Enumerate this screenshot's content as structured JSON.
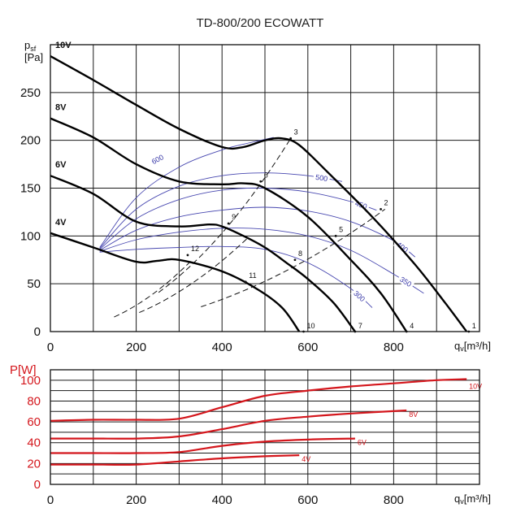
{
  "title": "TD-800/200 ECOWATT",
  "chart_data": [
    {
      "type": "line",
      "ylabel_main": "p",
      "ylabel_sub": "sf",
      "ylabel_unit": "[Pa]",
      "xlabel_main": "q",
      "xlabel_sub": "v",
      "xlabel_unit": "[m³/h]",
      "xlim": [
        0,
        1000
      ],
      "ylim": [
        0,
        300
      ],
      "xticks": [
        "0",
        "200",
        "400",
        "600",
        "800"
      ],
      "yticks": [
        "0",
        "50",
        "100",
        "150",
        "200",
        "250"
      ],
      "grid": true,
      "series": [
        {
          "name": "10V",
          "x": [
            0,
            100,
            200,
            300,
            400,
            450,
            500,
            540,
            580,
            650,
            750,
            850,
            920,
            970
          ],
          "y": [
            288,
            263,
            237,
            212,
            193,
            193,
            200,
            202,
            195,
            165,
            120,
            70,
            30,
            0
          ]
        },
        {
          "name": "8V",
          "x": [
            0,
            100,
            200,
            300,
            400,
            450,
            500,
            600,
            700,
            770,
            830
          ],
          "y": [
            223,
            203,
            175,
            157,
            154,
            155,
            150,
            120,
            75,
            40,
            0
          ]
        },
        {
          "name": "6V",
          "x": [
            0,
            100,
            200,
            300,
            370,
            400,
            450,
            500,
            550,
            600,
            660,
            710
          ],
          "y": [
            163,
            144,
            115,
            110,
            112,
            110,
            100,
            88,
            72,
            55,
            30,
            0
          ]
        },
        {
          "name": "4V",
          "x": [
            0,
            100,
            200,
            250,
            300,
            400,
            480,
            540,
            580
          ],
          "y": [
            103,
            88,
            73,
            74,
            75,
            63,
            45,
            25,
            0
          ]
        }
      ],
      "isolines": [
        {
          "label": "600",
          "x": [
            115,
            200,
            300,
            400,
            470,
            520
          ],
          "y": [
            88,
            140,
            172,
            190,
            198,
            203
          ]
        },
        {
          "label": "500",
          "x": [
            115,
            200,
            300,
            400,
            500,
            600,
            680
          ],
          "y": [
            87,
            128,
            152,
            163,
            166,
            163,
            157
          ]
        },
        {
          "label": "450",
          "x": [
            115,
            200,
            300,
            400,
            500,
            600,
            700,
            760
          ],
          "y": [
            86,
            118,
            138,
            148,
            150,
            146,
            136,
            127
          ]
        },
        {
          "label": "400",
          "x": [
            115,
            200,
            300,
            400,
            500,
            600,
            700,
            800,
            850
          ],
          "y": [
            85,
            106,
            120,
            127,
            130,
            126,
            115,
            95,
            78
          ]
        },
        {
          "label": "350",
          "x": [
            115,
            200,
            300,
            400,
            500,
            600,
            700,
            800,
            870
          ],
          "y": [
            84,
            96,
            104,
            108,
            107,
            100,
            85,
            60,
            40
          ]
        },
        {
          "label": "300",
          "x": [
            115,
            200,
            300,
            400,
            500,
            600,
            700,
            750
          ],
          "y": [
            83,
            86,
            88,
            89,
            86,
            72,
            45,
            25
          ]
        }
      ],
      "curve_labels": [
        "10V",
        "8V",
        "6V",
        "4V"
      ],
      "system_lines": [
        {
          "x": [
            0,
            560
          ],
          "y": [
            0,
            202
          ]
        },
        {
          "x": [
            0,
            780
          ],
          "y": [
            0,
            128
          ]
        },
        {
          "x": [
            0,
            460
          ],
          "y": [
            0,
            98
          ]
        },
        {
          "x": [
            0,
            330
          ],
          "y": [
            0,
            75
          ]
        }
      ],
      "points": [
        {
          "label": "1",
          "x": 975,
          "y": 0
        },
        {
          "label": "2",
          "x": 770,
          "y": 128
        },
        {
          "label": "3",
          "x": 560,
          "y": 202
        },
        {
          "label": "4",
          "x": 830,
          "y": 0
        },
        {
          "label": "5",
          "x": 665,
          "y": 100
        },
        {
          "label": "6",
          "x": 490,
          "y": 157
        },
        {
          "label": "7",
          "x": 710,
          "y": 0
        },
        {
          "label": "8",
          "x": 570,
          "y": 75
        },
        {
          "label": "9",
          "x": 415,
          "y": 113
        },
        {
          "label": "10",
          "x": 590,
          "y": 0
        },
        {
          "label": "11",
          "x": 455,
          "y": 52
        },
        {
          "label": "12",
          "x": 320,
          "y": 80
        }
      ]
    },
    {
      "type": "line",
      "ylabel": "P[W]",
      "xlabel_main": "q",
      "xlabel_sub": "v",
      "xlabel_unit": "[m³/h]",
      "xlim": [
        0,
        1000
      ],
      "ylim": [
        0,
        110
      ],
      "xticks": [
        "0",
        "200",
        "400",
        "600",
        "800"
      ],
      "yticks": [
        "0",
        "20",
        "40",
        "60",
        "80",
        "100"
      ],
      "grid": true,
      "series": [
        {
          "name": "10V",
          "x": [
            0,
            100,
            200,
            300,
            400,
            500,
            600,
            700,
            800,
            900,
            970
          ],
          "y": [
            61,
            62,
            62,
            63,
            74,
            85,
            90,
            94,
            97,
            100,
            101
          ]
        },
        {
          "name": "8V",
          "x": [
            0,
            100,
            200,
            300,
            400,
            500,
            600,
            700,
            830
          ],
          "y": [
            44,
            44,
            44,
            46,
            53,
            61,
            65,
            68,
            71
          ]
        },
        {
          "name": "6V",
          "x": [
            0,
            100,
            200,
            300,
            400,
            500,
            600,
            710
          ],
          "y": [
            30,
            30,
            30,
            31,
            37,
            41,
            43,
            44
          ]
        },
        {
          "name": "4V",
          "x": [
            0,
            100,
            200,
            300,
            400,
            500,
            580
          ],
          "y": [
            19,
            19,
            19,
            22,
            25,
            27,
            28
          ]
        }
      ]
    }
  ],
  "colors": {
    "curve": "#000000",
    "iso": "#4848b0",
    "power": "#d4161c",
    "grid": "#1a1a1a"
  }
}
